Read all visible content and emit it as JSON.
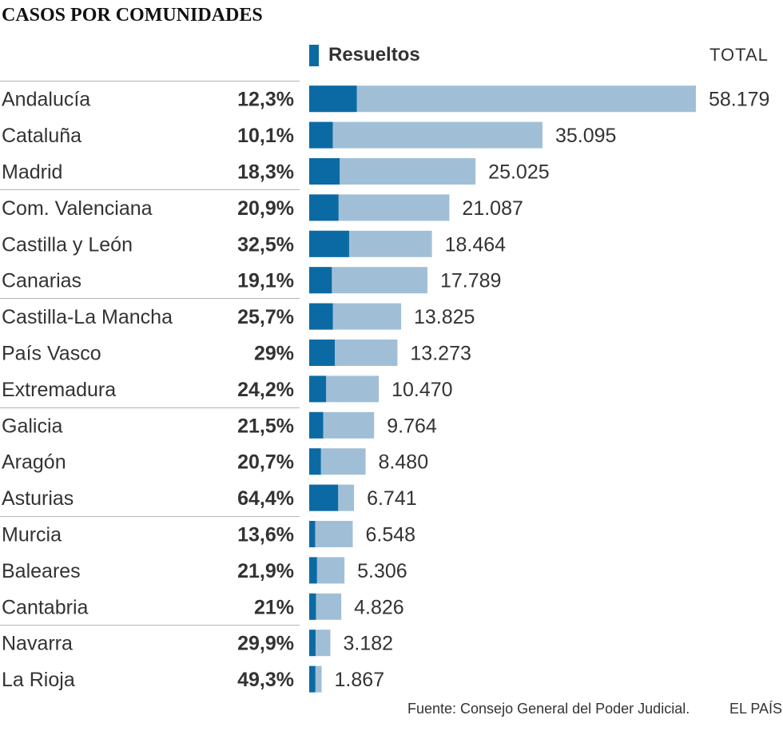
{
  "title": "CASOS POR COMUNIDADES",
  "legend": {
    "label": "Resueltos"
  },
  "total_header": "TOTAL",
  "footer": {
    "source": "Fuente: Consejo General del Poder Judicial.",
    "credit": "EL PAÍS"
  },
  "colors": {
    "resueltos": "#0b6aa3",
    "total": "#a0bfd6",
    "text": "#333333",
    "divider": "#b5b5b5"
  },
  "chart_data": {
    "type": "bar",
    "orientation": "horizontal",
    "stacked": "overlay",
    "xlim": [
      0,
      58179
    ],
    "categories": [
      "Andalucía",
      "Cataluña",
      "Madrid",
      "Com. Valenciana",
      "Castilla y León",
      "Canarias",
      "Castilla-La Mancha",
      "País Vasco",
      "Extremadura",
      "Galicia",
      "Aragón",
      "Asturias",
      "Murcia",
      "Baleares",
      "Cantabria",
      "Navarra",
      "La Rioja"
    ],
    "series": [
      {
        "name": "TOTAL",
        "values": [
          58179,
          35095,
          25025,
          21087,
          18464,
          17789,
          13825,
          13273,
          10470,
          9764,
          8480,
          6741,
          6548,
          5306,
          4826,
          3182,
          1867
        ],
        "labels": [
          "58.179",
          "35.095",
          "25.025",
          "21.087",
          "18.464",
          "17.789",
          "13.825",
          "13.273",
          "10.470",
          "9.764",
          "8.480",
          "6.741",
          "6.548",
          "5.306",
          "4.826",
          "3.182",
          "1.867"
        ]
      },
      {
        "name": "Resueltos",
        "percent": [
          12.3,
          10.1,
          18.3,
          20.9,
          32.5,
          19.1,
          25.7,
          29,
          24.2,
          21.5,
          20.7,
          64.4,
          13.6,
          21.9,
          21,
          29.9,
          49.3
        ],
        "labels": [
          "12,3%",
          "10,1%",
          "18,3%",
          "20,9%",
          "32,5%",
          "19,1%",
          "25,7%",
          "29%",
          "24,2%",
          "21,5%",
          "20,7%",
          "64,4%",
          "13,6%",
          "21,9%",
          "21%",
          "29,9%",
          "49,3%"
        ]
      }
    ],
    "groups_of": 3
  }
}
